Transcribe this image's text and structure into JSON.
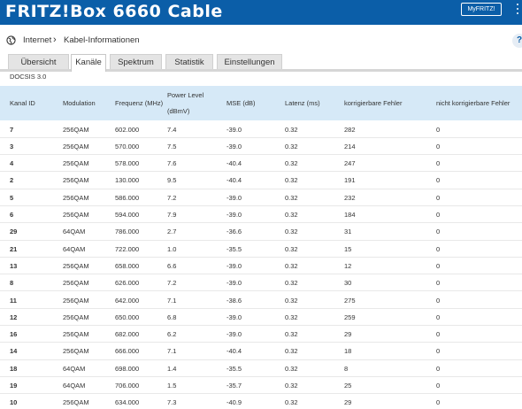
{
  "header": {
    "brand": "FRITZ!Box 6660 Cable",
    "myfritz_label": "MyFRITZ!"
  },
  "breadcrumb": {
    "section": "Internet",
    "page": "Kabel-Informationen"
  },
  "help_label": "?",
  "tabs": [
    {
      "label": "Übersicht",
      "active": false
    },
    {
      "label": "Kanäle",
      "active": true
    },
    {
      "label": "Spektrum",
      "active": false
    },
    {
      "label": "Statistik",
      "active": false
    },
    {
      "label": "Einstellungen",
      "active": false
    }
  ],
  "docsis_label": "DOCSIS 3.0",
  "table": {
    "columns": [
      "Kanal ID",
      "Modulation",
      "Frequenz (MHz)",
      "Power Level",
      "MSE (dB)",
      "Latenz (ms)",
      "korrigierbare Fehler",
      "nicht korrigierbare Fehler"
    ],
    "power_unit": "(dBmV)",
    "rows": [
      [
        "7",
        "256QAM",
        "602.000",
        "7.4",
        "-39.0",
        "0.32",
        "282",
        "0"
      ],
      [
        "3",
        "256QAM",
        "570.000",
        "7.5",
        "-39.0",
        "0.32",
        "214",
        "0"
      ],
      [
        "4",
        "256QAM",
        "578.000",
        "7.6",
        "-40.4",
        "0.32",
        "247",
        "0"
      ],
      [
        "2",
        "256QAM",
        "130.000",
        "9.5",
        "-40.4",
        "0.32",
        "191",
        "0"
      ],
      [
        "5",
        "256QAM",
        "586.000",
        "7.2",
        "-39.0",
        "0.32",
        "232",
        "0"
      ],
      [
        "6",
        "256QAM",
        "594.000",
        "7.9",
        "-39.0",
        "0.32",
        "184",
        "0"
      ],
      [
        "29",
        "64QAM",
        "786.000",
        "2.7",
        "-36.6",
        "0.32",
        "31",
        "0"
      ],
      [
        "21",
        "64QAM",
        "722.000",
        "1.0",
        "-35.5",
        "0.32",
        "15",
        "0"
      ],
      [
        "13",
        "256QAM",
        "658.000",
        "6.6",
        "-39.0",
        "0.32",
        "12",
        "0"
      ],
      [
        "8",
        "256QAM",
        "626.000",
        "7.2",
        "-39.0",
        "0.32",
        "30",
        "0"
      ],
      [
        "11",
        "256QAM",
        "642.000",
        "7.1",
        "-38.6",
        "0.32",
        "275",
        "0"
      ],
      [
        "12",
        "256QAM",
        "650.000",
        "6.8",
        "-39.0",
        "0.32",
        "259",
        "0"
      ],
      [
        "16",
        "256QAM",
        "682.000",
        "6.2",
        "-39.0",
        "0.32",
        "29",
        "0"
      ],
      [
        "14",
        "256QAM",
        "666.000",
        "7.1",
        "-40.4",
        "0.32",
        "18",
        "0"
      ],
      [
        "18",
        "64QAM",
        "698.000",
        "1.4",
        "-35.5",
        "0.32",
        "8",
        "0"
      ],
      [
        "19",
        "64QAM",
        "706.000",
        "1.5",
        "-35.7",
        "0.32",
        "25",
        "0"
      ],
      [
        "10",
        "256QAM",
        "634.000",
        "7.3",
        "-40.9",
        "0.32",
        "29",
        "0"
      ]
    ]
  }
}
